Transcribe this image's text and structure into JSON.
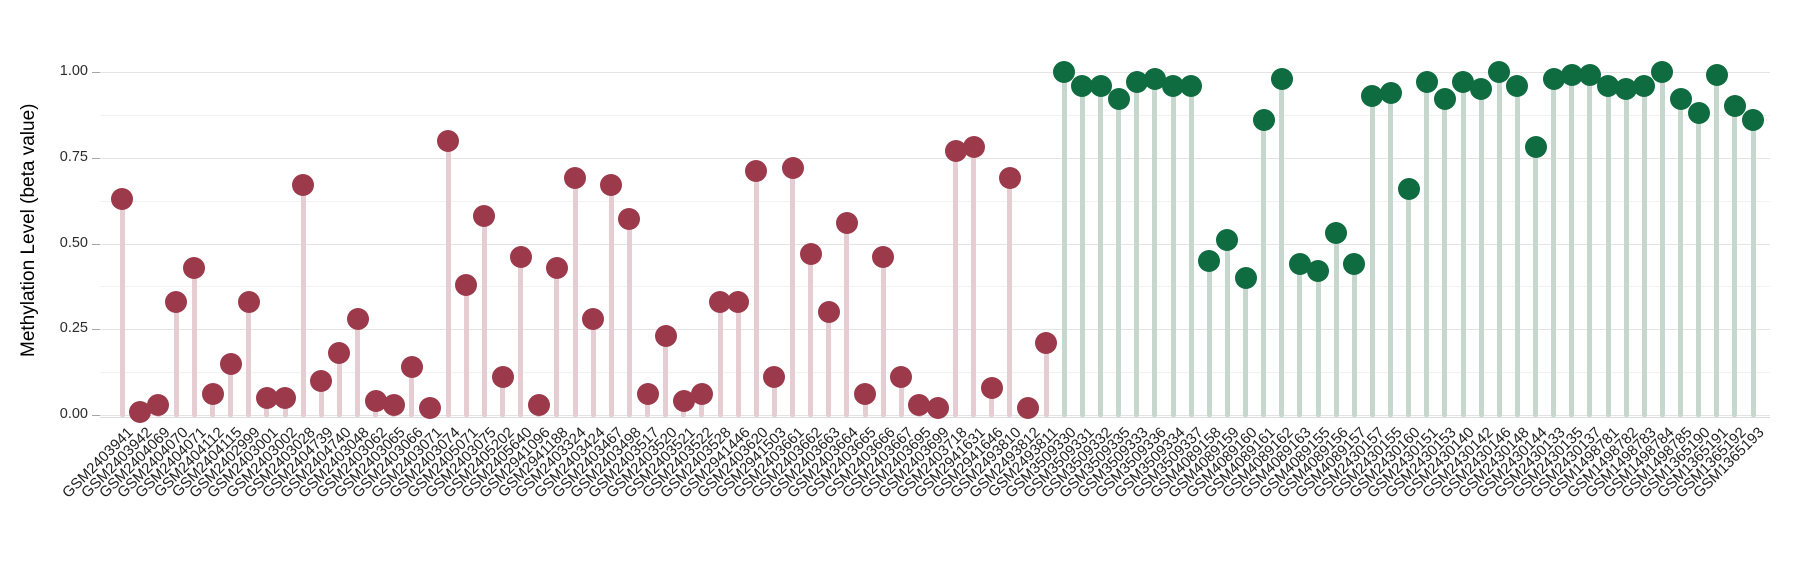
{
  "chart_data": {
    "type": "lollipop",
    "title": "",
    "xlabel": "",
    "ylabel": "Methylation Level (beta value)",
    "ylim": [
      0,
      1.05
    ],
    "grid": "horizontal major + minor, white background",
    "legend": "none",
    "yticks": [
      {
        "label": "0.00",
        "value": 0.0
      },
      {
        "label": "0.25",
        "value": 0.25
      },
      {
        "label": "0.50",
        "value": 0.5
      },
      {
        "label": "0.75",
        "value": 0.75
      },
      {
        "label": "1.00",
        "value": 1.0
      }
    ],
    "yticks_minor": [
      0.125,
      0.375,
      0.625,
      0.875
    ],
    "palette": {
      "maroon": {
        "dot": "#9c3a4c",
        "stem": "#e6ccd3"
      },
      "green": {
        "dot": "#0f6b40",
        "stem": "#c6d8cd"
      }
    },
    "points": [
      {
        "id": "GSM2403941",
        "value": 0.63,
        "group": "maroon"
      },
      {
        "id": "GSM2403942",
        "value": 0.01,
        "group": "maroon"
      },
      {
        "id": "GSM2404069",
        "value": 0.03,
        "group": "maroon"
      },
      {
        "id": "GSM2404070",
        "value": 0.33,
        "group": "maroon"
      },
      {
        "id": "GSM2404071",
        "value": 0.43,
        "group": "maroon"
      },
      {
        "id": "GSM2404112",
        "value": 0.06,
        "group": "maroon"
      },
      {
        "id": "GSM2404115",
        "value": 0.15,
        "group": "maroon"
      },
      {
        "id": "GSM2402999",
        "value": 0.33,
        "group": "maroon"
      },
      {
        "id": "GSM2403001",
        "value": 0.05,
        "group": "maroon"
      },
      {
        "id": "GSM2403002",
        "value": 0.05,
        "group": "maroon"
      },
      {
        "id": "GSM2403028",
        "value": 0.67,
        "group": "maroon"
      },
      {
        "id": "GSM2404739",
        "value": 0.1,
        "group": "maroon"
      },
      {
        "id": "GSM2404740",
        "value": 0.18,
        "group": "maroon"
      },
      {
        "id": "GSM2403048",
        "value": 0.28,
        "group": "maroon"
      },
      {
        "id": "GSM2403062",
        "value": 0.04,
        "group": "maroon"
      },
      {
        "id": "GSM2403065",
        "value": 0.03,
        "group": "maroon"
      },
      {
        "id": "GSM2403066",
        "value": 0.14,
        "group": "maroon"
      },
      {
        "id": "GSM2403071",
        "value": 0.02,
        "group": "maroon"
      },
      {
        "id": "GSM2403074",
        "value": 0.8,
        "group": "maroon"
      },
      {
        "id": "GSM2405071",
        "value": 0.38,
        "group": "maroon"
      },
      {
        "id": "GSM2403075",
        "value": 0.58,
        "group": "maroon"
      },
      {
        "id": "GSM2405202",
        "value": 0.11,
        "group": "maroon"
      },
      {
        "id": "GSM2405640",
        "value": 0.46,
        "group": "maroon"
      },
      {
        "id": "GSM2941096",
        "value": 0.03,
        "group": "maroon"
      },
      {
        "id": "GSM2941188",
        "value": 0.43,
        "group": "maroon"
      },
      {
        "id": "GSM2403324",
        "value": 0.69,
        "group": "maroon"
      },
      {
        "id": "GSM2403424",
        "value": 0.28,
        "group": "maroon"
      },
      {
        "id": "GSM2403467",
        "value": 0.67,
        "group": "maroon"
      },
      {
        "id": "GSM2403498",
        "value": 0.57,
        "group": "maroon"
      },
      {
        "id": "GSM2403517",
        "value": 0.06,
        "group": "maroon"
      },
      {
        "id": "GSM2403520",
        "value": 0.23,
        "group": "maroon"
      },
      {
        "id": "GSM2403521",
        "value": 0.04,
        "group": "maroon"
      },
      {
        "id": "GSM2403522",
        "value": 0.06,
        "group": "maroon"
      },
      {
        "id": "GSM2403528",
        "value": 0.33,
        "group": "maroon"
      },
      {
        "id": "GSM2941446",
        "value": 0.33,
        "group": "maroon"
      },
      {
        "id": "GSM2403620",
        "value": 0.71,
        "group": "maroon"
      },
      {
        "id": "GSM2941503",
        "value": 0.11,
        "group": "maroon"
      },
      {
        "id": "GSM2403661",
        "value": 0.72,
        "group": "maroon"
      },
      {
        "id": "GSM2403662",
        "value": 0.47,
        "group": "maroon"
      },
      {
        "id": "GSM2403663",
        "value": 0.3,
        "group": "maroon"
      },
      {
        "id": "GSM2403664",
        "value": 0.56,
        "group": "maroon"
      },
      {
        "id": "GSM2403665",
        "value": 0.06,
        "group": "maroon"
      },
      {
        "id": "GSM2403666",
        "value": 0.46,
        "group": "maroon"
      },
      {
        "id": "GSM2403667",
        "value": 0.11,
        "group": "maroon"
      },
      {
        "id": "GSM2403695",
        "value": 0.03,
        "group": "maroon"
      },
      {
        "id": "GSM2403699",
        "value": 0.02,
        "group": "maroon"
      },
      {
        "id": "GSM2403718",
        "value": 0.77,
        "group": "maroon"
      },
      {
        "id": "GSM2941631",
        "value": 0.78,
        "group": "maroon"
      },
      {
        "id": "GSM2941646",
        "value": 0.08,
        "group": "maroon"
      },
      {
        "id": "GSM2493810",
        "value": 0.69,
        "group": "maroon"
      },
      {
        "id": "GSM2493812",
        "value": 0.02,
        "group": "maroon"
      },
      {
        "id": "GSM2493811",
        "value": 0.21,
        "group": "maroon"
      },
      {
        "id": "GSM3509330",
        "value": 1.0,
        "group": "green"
      },
      {
        "id": "GSM3509331",
        "value": 0.96,
        "group": "green"
      },
      {
        "id": "GSM3509332",
        "value": 0.96,
        "group": "green"
      },
      {
        "id": "GSM3509335",
        "value": 0.92,
        "group": "green"
      },
      {
        "id": "GSM3509333",
        "value": 0.97,
        "group": "green"
      },
      {
        "id": "GSM3509336",
        "value": 0.98,
        "group": "green"
      },
      {
        "id": "GSM3509334",
        "value": 0.96,
        "group": "green"
      },
      {
        "id": "GSM3509337",
        "value": 0.96,
        "group": "green"
      },
      {
        "id": "GSM4089158",
        "value": 0.45,
        "group": "green"
      },
      {
        "id": "GSM4089159",
        "value": 0.51,
        "group": "green"
      },
      {
        "id": "GSM4089160",
        "value": 0.4,
        "group": "green"
      },
      {
        "id": "GSM4089161",
        "value": 0.86,
        "group": "green"
      },
      {
        "id": "GSM4089162",
        "value": 0.98,
        "group": "green"
      },
      {
        "id": "GSM4089163",
        "value": 0.44,
        "group": "green"
      },
      {
        "id": "GSM4089155",
        "value": 0.42,
        "group": "green"
      },
      {
        "id": "GSM4089156",
        "value": 0.53,
        "group": "green"
      },
      {
        "id": "GSM4089157",
        "value": 0.44,
        "group": "green"
      },
      {
        "id": "GSM2430157",
        "value": 0.93,
        "group": "green"
      },
      {
        "id": "GSM2430155",
        "value": 0.94,
        "group": "green"
      },
      {
        "id": "GSM2430160",
        "value": 0.66,
        "group": "green"
      },
      {
        "id": "GSM2430151",
        "value": 0.97,
        "group": "green"
      },
      {
        "id": "GSM2430153",
        "value": 0.92,
        "group": "green"
      },
      {
        "id": "GSM2430140",
        "value": 0.97,
        "group": "green"
      },
      {
        "id": "GSM2430142",
        "value": 0.95,
        "group": "green"
      },
      {
        "id": "GSM2430146",
        "value": 1.0,
        "group": "green"
      },
      {
        "id": "GSM2430148",
        "value": 0.96,
        "group": "green"
      },
      {
        "id": "GSM2430144",
        "value": 0.78,
        "group": "green"
      },
      {
        "id": "GSM2430133",
        "value": 0.98,
        "group": "green"
      },
      {
        "id": "GSM2430135",
        "value": 0.99,
        "group": "green"
      },
      {
        "id": "GSM2430137",
        "value": 0.99,
        "group": "green"
      },
      {
        "id": "GSM1498781",
        "value": 0.96,
        "group": "green"
      },
      {
        "id": "GSM1498782",
        "value": 0.95,
        "group": "green"
      },
      {
        "id": "GSM1498783",
        "value": 0.96,
        "group": "green"
      },
      {
        "id": "GSM1498784",
        "value": 1.0,
        "group": "green"
      },
      {
        "id": "GSM1498785",
        "value": 0.92,
        "group": "green"
      },
      {
        "id": "GSM1365190",
        "value": 0.88,
        "group": "green"
      },
      {
        "id": "GSM1365191",
        "value": 0.99,
        "group": "green"
      },
      {
        "id": "GSM1365192",
        "value": 0.9,
        "group": "green"
      },
      {
        "id": "GSM1365193",
        "value": 0.86,
        "group": "green"
      }
    ]
  }
}
